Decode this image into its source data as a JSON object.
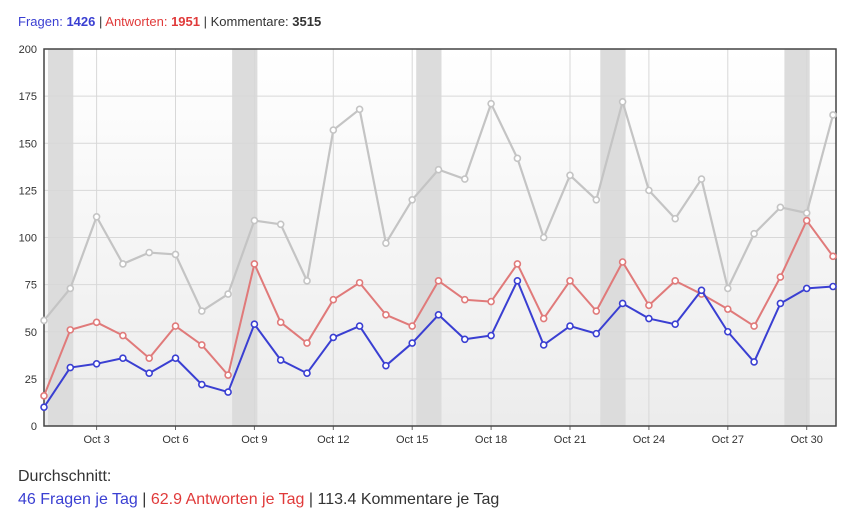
{
  "summary": {
    "questions_label": "Fragen:",
    "questions_value": "1426",
    "answers_label": "Antworten:",
    "answers_value": "1951",
    "comments_label": "Kommentare:",
    "comments_value": "3515",
    "separator": "|"
  },
  "average": {
    "title": "Durchschnitt:",
    "questions": "46 Fragen je Tag",
    "answers": "62.9 Antworten je Tag",
    "comments": "113.4 Kommentare je Tag",
    "separator": "|"
  },
  "colors": {
    "questions": "#3a3fd2",
    "answers": "#e07a7a",
    "comments": "#c4c4c4",
    "weekend_band": "#dcdcdc",
    "grid": "#d8d8d8"
  },
  "chart_data": {
    "type": "line",
    "title": "",
    "xlabel": "",
    "ylabel": "",
    "ylim": [
      0,
      200
    ],
    "yticks": [
      0,
      25,
      50,
      75,
      100,
      125,
      150,
      175,
      200
    ],
    "grid": true,
    "legend": "none",
    "x": [
      "Oct 1",
      "Oct 2",
      "Oct 3",
      "Oct 4",
      "Oct 5",
      "Oct 6",
      "Oct 7",
      "Oct 8",
      "Oct 9",
      "Oct 10",
      "Oct 11",
      "Oct 12",
      "Oct 13",
      "Oct 14",
      "Oct 15",
      "Oct 16",
      "Oct 17",
      "Oct 18",
      "Oct 19",
      "Oct 20",
      "Oct 21",
      "Oct 22",
      "Oct 23",
      "Oct 24",
      "Oct 25",
      "Oct 26",
      "Oct 27",
      "Oct 28",
      "Oct 29",
      "Oct 30",
      "Oct 31"
    ],
    "x_tick_labels": [
      "Oct 3",
      "Oct 6",
      "Oct 9",
      "Oct 12",
      "Oct 15",
      "Oct 18",
      "Oct 21",
      "Oct 24",
      "Oct 27",
      "Oct 30"
    ],
    "weekend_dates": [
      [
        "Oct 1",
        "Oct 2"
      ],
      [
        "Oct 8",
        "Oct 9"
      ],
      [
        "Oct 15",
        "Oct 16"
      ],
      [
        "Oct 22",
        "Oct 23"
      ],
      [
        "Oct 29",
        "Oct 30"
      ]
    ],
    "series": [
      {
        "key": "comments",
        "values": [
          56,
          73,
          111,
          86,
          92,
          91,
          61,
          70,
          109,
          107,
          77,
          157,
          168,
          97,
          120,
          136,
          131,
          171,
          142,
          100,
          133,
          120,
          172,
          125,
          110,
          131,
          73,
          102,
          116,
          113,
          165
        ]
      },
      {
        "key": "answers",
        "values": [
          16,
          51,
          55,
          48,
          36,
          53,
          43,
          27,
          86,
          55,
          44,
          67,
          76,
          59,
          53,
          77,
          67,
          66,
          86,
          57,
          77,
          61,
          87,
          64,
          77,
          70,
          62,
          53,
          79,
          109,
          90
        ]
      },
      {
        "key": "questions",
        "values": [
          10,
          31,
          33,
          36,
          28,
          36,
          22,
          18,
          54,
          35,
          28,
          47,
          53,
          32,
          44,
          59,
          46,
          48,
          77,
          43,
          53,
          49,
          65,
          57,
          54,
          72,
          50,
          34,
          65,
          73,
          74
        ]
      }
    ]
  }
}
